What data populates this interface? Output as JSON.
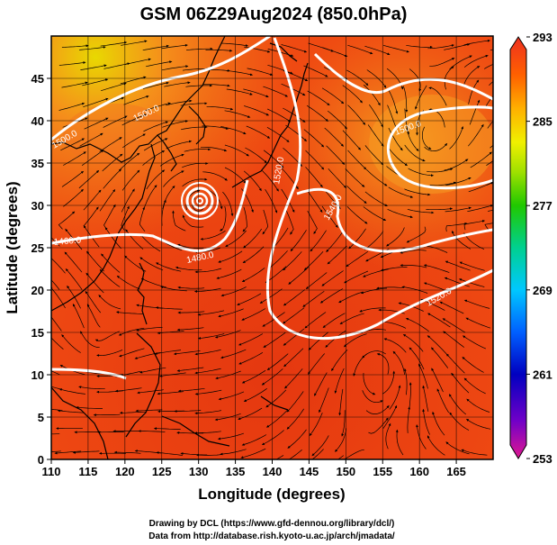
{
  "title": "GSM 06Z29Aug2024 (850.0hPa)",
  "x_axis": {
    "label": "Longitude (degrees)",
    "range": [
      110,
      170
    ],
    "ticks": [
      110,
      115,
      120,
      125,
      130,
      135,
      140,
      145,
      150,
      155,
      160,
      165
    ]
  },
  "y_axis": {
    "label": "Latitude  (degrees)",
    "range": [
      0,
      50
    ],
    "ticks": [
      0,
      5,
      10,
      15,
      20,
      25,
      30,
      35,
      40,
      45
    ]
  },
  "colorbar": {
    "ticks": [
      293,
      285,
      277,
      269,
      261,
      253
    ],
    "range": [
      253,
      293
    ],
    "colors": [
      "#e01890",
      "#7000c8",
      "#0000c0",
      "#0060ff",
      "#00c8ff",
      "#00d090",
      "#20c800",
      "#a0e000",
      "#f0f000",
      "#ffb000",
      "#ff6000",
      "#ee3020"
    ]
  },
  "contour_labels": [
    "1460.0",
    "1480.0",
    "1500.0",
    "1520.0",
    "1540.0",
    "1500.0",
    "1520.0",
    "1500.0"
  ],
  "credits": {
    "line1": "Drawing by DCL (https://www.gfd-dennou.org/library/dcl/)",
    "line2": "Data from http://database.rish.kyoto-u.ac.jp/arch/jmadata/"
  },
  "colors": {
    "field_warm": "#ef4a12",
    "field_hot": "#e2330f",
    "field_cool": "#f58a1c",
    "contour": "#ffffff",
    "coast": "#000000"
  }
}
